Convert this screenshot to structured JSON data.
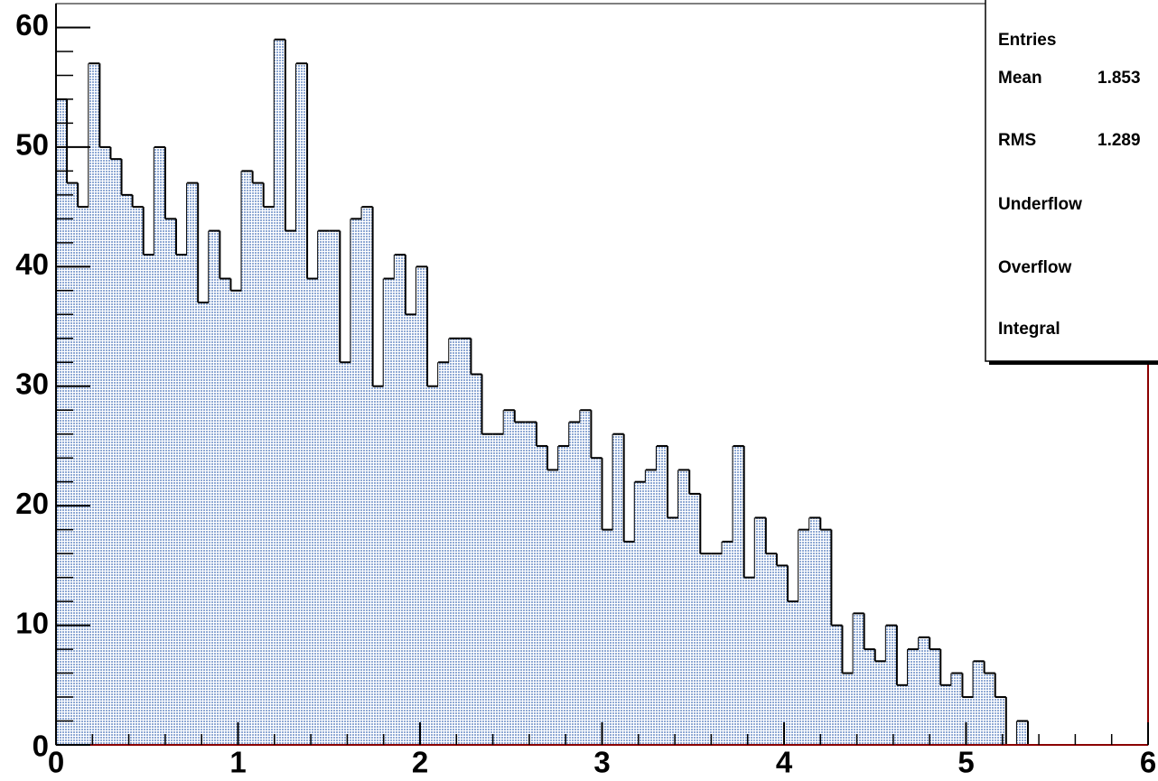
{
  "chart_data": {
    "type": "histogram",
    "bins": [
      0,
      0.06,
      0.12,
      0.18,
      0.24,
      0.3,
      0.36,
      0.42,
      0.48,
      0.54,
      0.6,
      0.66,
      0.72,
      0.78,
      0.84,
      0.9,
      0.96,
      1.02,
      1.08,
      1.14,
      1.2,
      1.26,
      1.32,
      1.38,
      1.44,
      1.5,
      1.56,
      1.62,
      1.68,
      1.74,
      1.8,
      1.86,
      1.92,
      1.98,
      2.04,
      2.1,
      2.16,
      2.22,
      2.28,
      2.34,
      2.4,
      2.46,
      2.52,
      2.58,
      2.64,
      2.7,
      2.76,
      2.82,
      2.88,
      2.94,
      3,
      3.06,
      3.12,
      3.18,
      3.24,
      3.3,
      3.36,
      3.42,
      3.48,
      3.54,
      3.6,
      3.66,
      3.72,
      3.78,
      3.84,
      3.9,
      3.96,
      4.02,
      4.08,
      4.14,
      4.2,
      4.26,
      4.32,
      4.38,
      4.44,
      4.5,
      4.56,
      4.62,
      4.68,
      4.74,
      4.8,
      4.86,
      4.92,
      4.98,
      5.04,
      5.1,
      5.16,
      5.22,
      5.28,
      5.34,
      5.4,
      5.46,
      5.52,
      5.58,
      5.64,
      5.7,
      5.76,
      5.82,
      5.88,
      5.94,
      6
    ],
    "counts": [
      54,
      47,
      45,
      57,
      50,
      49,
      46,
      45,
      41,
      50,
      44,
      41,
      47,
      37,
      43,
      39,
      38,
      48,
      47,
      45,
      59,
      43,
      57,
      39,
      43,
      43,
      32,
      44,
      45,
      30,
      39,
      41,
      36,
      40,
      30,
      32,
      34,
      34,
      31,
      26,
      26,
      28,
      27,
      27,
      25,
      23,
      25,
      27,
      28,
      24,
      18,
      26,
      17,
      22,
      23,
      25,
      19,
      23,
      21,
      16,
      16,
      17,
      25,
      14,
      19,
      16,
      15,
      12,
      18,
      19,
      18,
      10,
      6,
      11,
      8,
      7,
      10,
      5,
      8,
      9,
      8,
      5,
      6,
      4,
      7,
      6,
      4,
      0,
      2,
      0,
      0,
      0,
      0,
      0,
      0,
      0,
      0,
      0,
      0,
      0
    ],
    "color": "#a8bde0",
    "xlim": [
      0,
      6
    ],
    "xticks": [
      0,
      1,
      2,
      3,
      4,
      5,
      6
    ],
    "ylim": [
      0,
      62
    ],
    "yticks": [
      0,
      10,
      20,
      30,
      40,
      50,
      60
    ],
    "stats": [
      {
        "label": "Entries"
      },
      {
        "label": "Mean",
        "value": 1.853
      },
      {
        "label": "RMS",
        "value": 1.289
      },
      {
        "label": "Underflow"
      },
      {
        "label": "Overflow"
      },
      {
        "label": "Integral"
      }
    ]
  }
}
